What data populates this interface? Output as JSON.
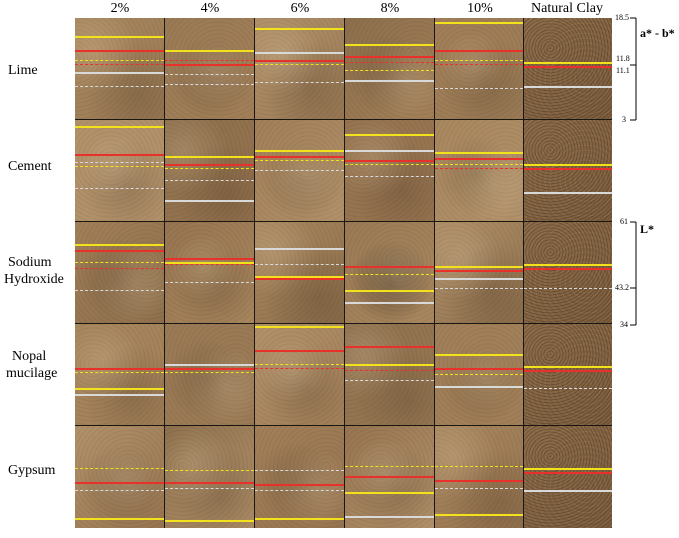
{
  "columns": [
    "2%",
    "4%",
    "6%",
    "8%",
    "10%",
    "Natural Clay"
  ],
  "rows": [
    {
      "label_lines": [
        "Lime"
      ]
    },
    {
      "label_lines": [
        "Cement"
      ]
    },
    {
      "label_lines": [
        "Sodium",
        "Hydroxide"
      ]
    },
    {
      "label_lines": [
        "Nopal",
        "mucilage"
      ]
    },
    {
      "label_lines": [
        "Gypsum"
      ]
    }
  ],
  "scales": [
    {
      "axis_label": "a* - b*",
      "ticks": [
        "18.5",
        "11.8",
        "11.1",
        "3"
      ]
    },
    {
      "axis_label": "L*",
      "ticks": [
        "61",
        "43.2",
        "34"
      ]
    }
  ],
  "line_colors": {
    "yellow": "#f2e21c",
    "red": "#e8312a",
    "white": "#d9d9d9",
    "scale": "#000000"
  },
  "texture_palette": [
    "#a8875e",
    "#9a7a55",
    "#b1916a",
    "#8d6f4c",
    "#a17f58",
    "#967450"
  ]
}
